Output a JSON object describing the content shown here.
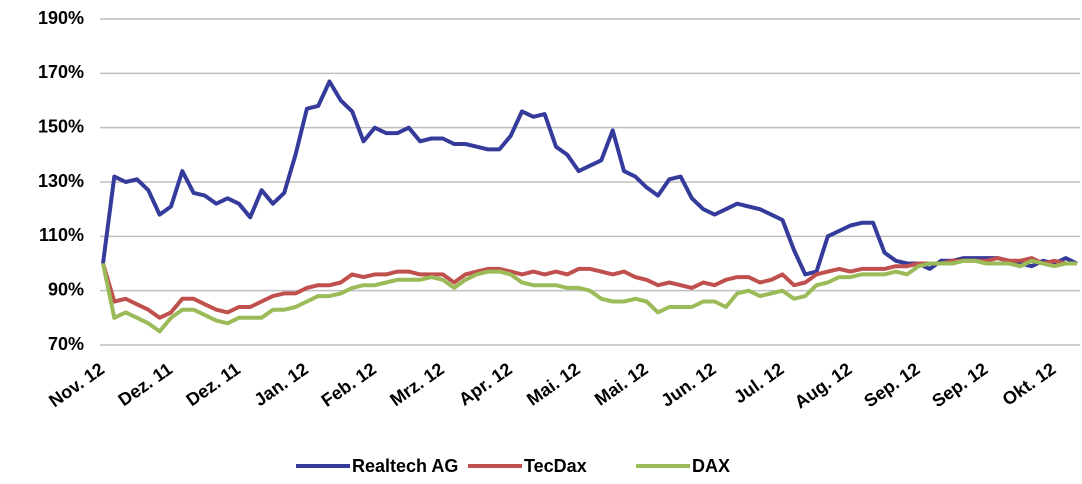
{
  "chart_data": {
    "type": "line",
    "categories": [
      "Nov. 12",
      null,
      null,
      null,
      null,
      null,
      "Dez. 11",
      null,
      null,
      null,
      null,
      null,
      "Dez. 11",
      null,
      null,
      null,
      null,
      null,
      "Jan. 12",
      null,
      null,
      null,
      null,
      null,
      "Feb. 12",
      null,
      null,
      null,
      null,
      null,
      "Mrz. 12",
      null,
      null,
      null,
      null,
      null,
      "Apr. 12",
      null,
      null,
      null,
      null,
      null,
      "Mai. 12",
      null,
      null,
      null,
      null,
      null,
      "Mai. 12",
      null,
      null,
      null,
      null,
      null,
      "Jun. 12",
      null,
      null,
      null,
      null,
      null,
      "Jul. 12",
      null,
      null,
      null,
      null,
      null,
      "Aug. 12",
      null,
      null,
      null,
      null,
      null,
      "Sep. 12",
      null,
      null,
      null,
      null,
      null,
      "Sep. 12",
      null,
      null,
      null,
      null,
      null,
      "Okt. 12",
      null,
      null
    ],
    "series": [
      {
        "name": "Realtech AG",
        "color": "#353b9b",
        "values": [
          100,
          132,
          130,
          131,
          127,
          118,
          121,
          134,
          126,
          125,
          122,
          124,
          122,
          117,
          127,
          122,
          126,
          140,
          157,
          158,
          167,
          160,
          156,
          145,
          150,
          148,
          148,
          150,
          145,
          146,
          146,
          144,
          144,
          143,
          142,
          142,
          147,
          156,
          154,
          155,
          143,
          140,
          134,
          136,
          138,
          149,
          134,
          132,
          128,
          125,
          131,
          132,
          124,
          120,
          118,
          120,
          122,
          121,
          120,
          118,
          116,
          105,
          96,
          97,
          110,
          112,
          114,
          115,
          115,
          104,
          101,
          100,
          100,
          98,
          101,
          101,
          102,
          102,
          102,
          102,
          101,
          100,
          99,
          101,
          100,
          102,
          100
        ]
      },
      {
        "name": "TecDax",
        "color": "#c0504d",
        "values": [
          100,
          86,
          87,
          85,
          83,
          80,
          82,
          87,
          87,
          85,
          83,
          82,
          84,
          84,
          86,
          88,
          89,
          89,
          91,
          92,
          92,
          93,
          96,
          95,
          96,
          96,
          97,
          97,
          96,
          96,
          96,
          93,
          96,
          97,
          98,
          98,
          97,
          96,
          97,
          96,
          97,
          96,
          98,
          98,
          97,
          96,
          97,
          95,
          94,
          92,
          93,
          92,
          91,
          93,
          92,
          94,
          95,
          95,
          93,
          94,
          96,
          92,
          93,
          96,
          97,
          98,
          97,
          98,
          98,
          98,
          99,
          99,
          100,
          100,
          100,
          101,
          101,
          101,
          101,
          102,
          101,
          101,
          102,
          100,
          101,
          100,
          100
        ]
      },
      {
        "name": "DAX",
        "color": "#9bbb59",
        "values": [
          100,
          80,
          82,
          80,
          78,
          75,
          80,
          83,
          83,
          81,
          79,
          78,
          80,
          80,
          80,
          83,
          83,
          84,
          86,
          88,
          88,
          89,
          91,
          92,
          92,
          93,
          94,
          94,
          94,
          95,
          94,
          91,
          94,
          96,
          97,
          97,
          96,
          93,
          92,
          92,
          92,
          91,
          91,
          90,
          87,
          86,
          86,
          87,
          86,
          82,
          84,
          84,
          84,
          86,
          86,
          84,
          89,
          90,
          88,
          89,
          90,
          87,
          88,
          92,
          93,
          95,
          95,
          96,
          96,
          96,
          97,
          96,
          99,
          100,
          100,
          100,
          101,
          101,
          100,
          100,
          100,
          99,
          101,
          100,
          99,
          100,
          100
        ]
      }
    ],
    "ylim": [
      70,
      190
    ],
    "yticks": [
      {
        "value": 70,
        "label": "70%"
      },
      {
        "value": 90,
        "label": "90%"
      },
      {
        "value": 110,
        "label": "110%"
      },
      {
        "value": 130,
        "label": "130%"
      },
      {
        "value": 150,
        "label": "150%"
      },
      {
        "value": 170,
        "label": "170%"
      },
      {
        "value": 190,
        "label": "190%"
      }
    ],
    "grid": true,
    "legend": "bottom"
  }
}
